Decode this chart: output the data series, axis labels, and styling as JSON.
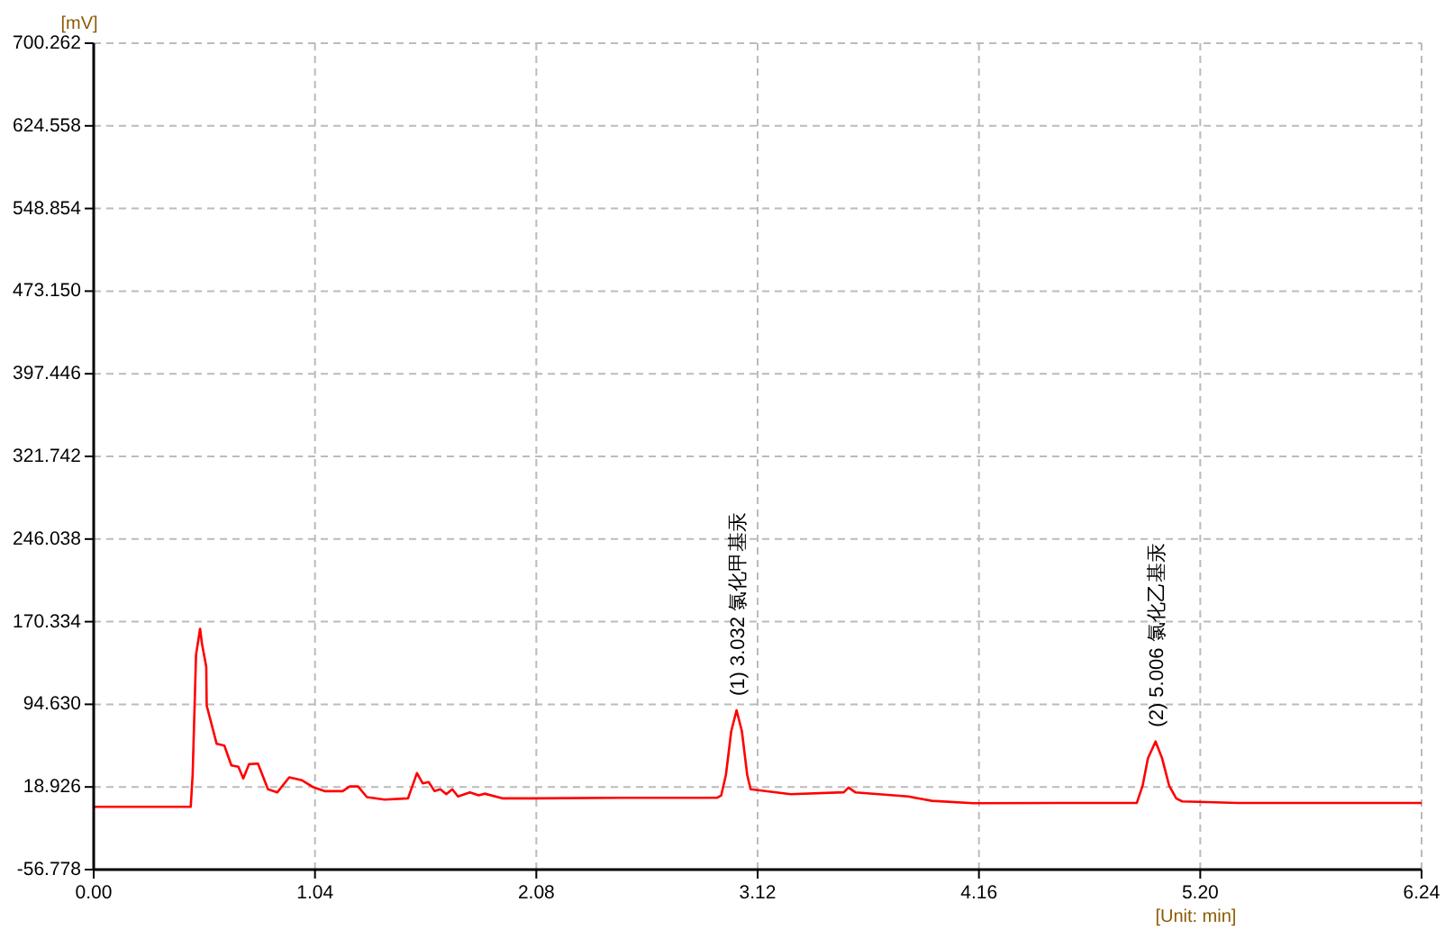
{
  "chart_data": {
    "type": "line",
    "ylabel": "[mV]",
    "xlabel": "[Unit: min]",
    "xlim": [
      0,
      6.24
    ],
    "xticks": [
      {
        "value": 0,
        "label": "0.00"
      },
      1.04,
      2.08,
      3.12,
      4.16,
      {
        "value": 5.2,
        "label": "5.20"
      },
      6.24
    ],
    "ylim": [
      -56.778,
      700.262
    ],
    "yticks": [
      {
        "value": -56.778,
        "label": "-56.778"
      },
      {
        "value": 18.926,
        "label": "18.926"
      },
      {
        "value": 94.63,
        "label": "94.630"
      },
      {
        "value": 170.334,
        "label": "170.334"
      },
      {
        "value": 246.038,
        "label": "246.038"
      },
      {
        "value": 321.742,
        "label": "321.742"
      },
      {
        "value": 397.446,
        "label": "397.446"
      },
      {
        "value": 473.15,
        "label": "473.150"
      },
      {
        "value": 548.854,
        "label": "548.854"
      },
      {
        "value": 624.558,
        "label": "624.558"
      },
      {
        "value": 700.262,
        "label": "700.262"
      }
    ],
    "grid": true,
    "line_style": "solid",
    "marker": "none",
    "series": [
      {
        "color": "#ff0000",
        "x": [
          0,
          0.456,
          0.465,
          0.481,
          0.5,
          0.509,
          0.529,
          0.531,
          0.578,
          0.614,
          0.647,
          0.68,
          0.703,
          0.73,
          0.772,
          0.819,
          0.863,
          0.919,
          0.979,
          1.035,
          1.085,
          1.17,
          1.203,
          1.242,
          1.284,
          1.367,
          1.477,
          1.519,
          1.546,
          1.574,
          1.602,
          1.629,
          1.657,
          1.685,
          1.712,
          1.768,
          1.809,
          1.837,
          1.92,
          2.058,
          2.473,
          2.93,
          2.949,
          2.971,
          2.996,
          3.021,
          3.046,
          3.071,
          3.087,
          3.276,
          3.525,
          3.547,
          3.579,
          3.828,
          3.939,
          4.133,
          4.548,
          4.902,
          4.929,
          4.954,
          4.99,
          5.021,
          5.054,
          5.087,
          5.115,
          5.378,
          6.24
        ],
        "values": [
          0.8,
          0.8,
          30,
          140,
          163.8,
          150,
          129,
          93.5,
          58.4,
          56.8,
          38.7,
          37.5,
          26.7,
          39.8,
          40.3,
          16.8,
          14,
          27.7,
          25,
          18.4,
          15.1,
          15.1,
          19.4,
          19.4,
          9.6,
          7.4,
          8.5,
          31.6,
          22.2,
          23.4,
          15.1,
          16.8,
          12.3,
          16.8,
          10.2,
          14,
          11.2,
          12.8,
          8.5,
          8.5,
          9,
          9,
          11.2,
          30,
          70,
          89.2,
          70,
          30,
          16.8,
          12.3,
          14,
          18.4,
          14,
          10.2,
          6.2,
          4,
          4.3,
          4.3,
          20,
          45,
          60.6,
          45,
          20,
          8.5,
          5.7,
          4.3,
          4.3
        ]
      }
    ],
    "annotations": [
      {
        "text": "(1) 3.032 氯化甲基汞",
        "x": 3.021,
        "y": 89.2
      },
      {
        "text": "(2) 5.006 氯化乙基汞",
        "x": 4.99,
        "y": 60.6
      }
    ]
  }
}
